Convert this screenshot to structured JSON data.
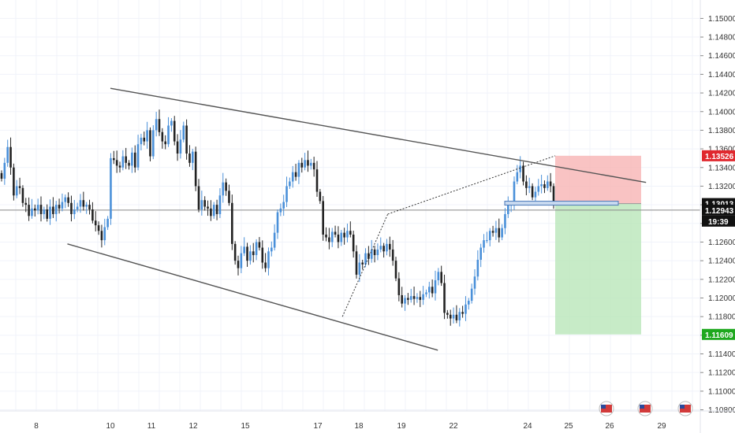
{
  "chart_data": {
    "type": "candlestick",
    "colors": {
      "up": "#4a90d9",
      "down": "#222222",
      "grid": "#f0f3fa",
      "trendline": "#555555",
      "stop_zone": "#f7b4b4",
      "target_zone": "#b9e6b9",
      "stop_label": "#e0282e",
      "target_label": "#1ea81e",
      "price_label": "#111111"
    },
    "y_ticks": [
      "1.15000",
      "1.14800",
      "1.14600",
      "1.14400",
      "1.14200",
      "1.14000",
      "1.13800",
      "1.13600",
      "1.13400",
      "1.13200",
      "1.13000",
      "1.12800",
      "1.12600",
      "1.12400",
      "1.12200",
      "1.12000",
      "1.11800",
      "1.11600",
      "1.11400",
      "1.11200",
      "1.11000",
      "1.10800"
    ],
    "y_tick_values": [
      1.15,
      1.148,
      1.146,
      1.144,
      1.142,
      1.14,
      1.138,
      1.136,
      1.134,
      1.132,
      1.13,
      1.128,
      1.126,
      1.124,
      1.122,
      1.12,
      1.118,
      1.116,
      1.114,
      1.112,
      1.11,
      1.108
    ],
    "ylim": [
      1.1072,
      1.1513
    ],
    "x_ticks": [
      "8",
      "10",
      "11",
      "12",
      "15",
      "17",
      "18",
      "19",
      "22",
      "24",
      "25",
      "26",
      "29"
    ],
    "price_labels": {
      "stop": "1.13526",
      "entry": "1.13013",
      "current": "1.12943",
      "countdown": "19:39",
      "target": "1.11609"
    },
    "price_levels": {
      "stop": 1.13526,
      "entry": 1.13013,
      "current": 1.12943,
      "target": 1.11609
    },
    "upper_channel": [
      [
        1.1425,
        1
      ],
      [
        1.1324,
        11.7
      ]
    ],
    "lower_channel": [
      [
        1.1258,
        0.42
      ],
      [
        1.1144,
        7.7
      ]
    ],
    "path_annotation": [
      [
        1.118,
        5.6
      ],
      [
        1.129,
        6.68
      ]
    ],
    "candles_close": [
      1.1328,
      1.1345,
      1.1362,
      1.134,
      1.131,
      1.132,
      1.1318,
      1.1302,
      1.13,
      1.1288,
      1.1296,
      1.1294,
      1.13,
      1.129,
      1.1295,
      1.1285,
      1.1298,
      1.129,
      1.13,
      1.1296,
      1.1303,
      1.1308,
      1.1302,
      1.129,
      1.1295,
      1.1298,
      1.1305,
      1.1298,
      1.13,
      1.1295,
      1.1283,
      1.1278,
      1.1272,
      1.1262,
      1.1276,
      1.1285,
      1.135,
      1.1348,
      1.1342,
      1.134,
      1.1352,
      1.1345,
      1.1342,
      1.1356,
      1.134,
      1.1365,
      1.1372,
      1.1368,
      1.138,
      1.1352,
      1.138,
      1.1392,
      1.1378,
      1.1368,
      1.1365,
      1.1385,
      1.139,
      1.1368,
      1.1355,
      1.137,
      1.1385,
      1.1355,
      1.1345,
      1.1357,
      1.132,
      1.1295,
      1.1305,
      1.1298,
      1.1296,
      1.1288,
      1.13,
      1.129,
      1.131,
      1.1324,
      1.1315,
      1.1302,
      1.1258,
      1.124,
      1.1232,
      1.1248,
      1.1255,
      1.124,
      1.125,
      1.1246,
      1.126,
      1.1254,
      1.1238,
      1.1232,
      1.125,
      1.1254,
      1.127,
      1.1292,
      1.1296,
      1.1303,
      1.132,
      1.1325,
      1.1335,
      1.133,
      1.1345,
      1.134,
      1.1348,
      1.1342,
      1.1345,
      1.1338,
      1.1314,
      1.1304,
      1.1268,
      1.1265,
      1.126,
      1.1271,
      1.1268,
      1.126,
      1.127,
      1.1265,
      1.1272,
      1.1268,
      1.125,
      1.1225,
      1.1238,
      1.1236,
      1.1248,
      1.1242,
      1.1252,
      1.1246,
      1.1252,
      1.1256,
      1.125,
      1.1258,
      1.1252,
      1.124,
      1.1221,
      1.1203,
      1.1194,
      1.12,
      1.1198,
      1.1202,
      1.1199,
      1.1201,
      1.1198,
      1.1204,
      1.1206,
      1.1212,
      1.1205,
      1.1219,
      1.1228,
      1.1216,
      1.1184,
      1.1182,
      1.1178,
      1.1182,
      1.1176,
      1.1185,
      1.1183,
      1.1193,
      1.1197,
      1.121,
      1.1223,
      1.1241,
      1.1254,
      1.1262,
      1.1262,
      1.1272,
      1.127,
      1.1275,
      1.1265,
      1.1275,
      1.129,
      1.13,
      1.13,
      1.1325,
      1.1335,
      1.1342,
      1.1325,
      1.1318,
      1.132,
      1.1308,
      1.1314,
      1.132,
      1.1322,
      1.1318,
      1.1325,
      1.132,
      1.13
    ]
  }
}
